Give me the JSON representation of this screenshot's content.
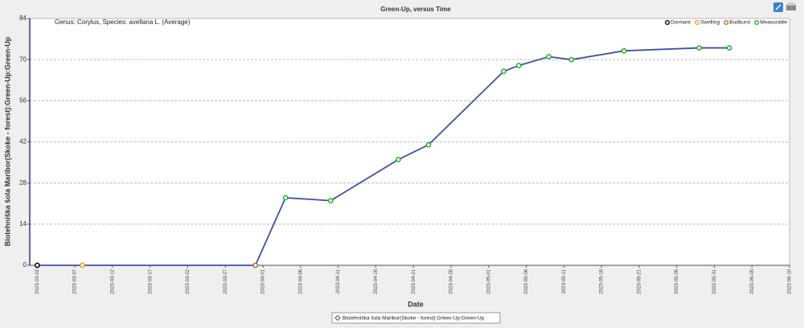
{
  "chart_data": {
    "type": "line",
    "title": "Green-Up, versus Time",
    "x_label": "Date",
    "y_label": "Biotehniška šola Maribor(Skoke - forest):Green-Up:Green-Up",
    "annotation": "Genus: Corylus, Species: avellana L. (Average)",
    "x": [
      "2023-03-02",
      "2023-03-08",
      "2023-03-31",
      "2023-04-04",
      "2023-04-10",
      "2023-04-19",
      "2023-04-23",
      "2023-05-03",
      "2023-05-05",
      "2023-05-09",
      "2023-05-12",
      "2023-05-19",
      "2023-05-29",
      "2023-06-02"
    ],
    "series": [
      {
        "name": "Biotehniška šola Maribor(Skoke - forest):Green-Up:Green-Up",
        "color": "#3f51a8",
        "values": [
          0,
          0,
          0,
          23,
          22,
          36,
          41,
          66,
          68,
          71,
          70,
          73,
          74,
          74
        ],
        "marker_colors": [
          "#000000",
          "#e8a020",
          "#b06a20",
          "#22b022",
          "#22b022",
          "#22b022",
          "#22b022",
          "#22b022",
          "#22b022",
          "#22b022",
          "#22b022",
          "#22b022",
          "#22b022",
          "#22b022"
        ]
      }
    ],
    "phase_legend": [
      {
        "name": "Dormant",
        "color": "#000000"
      },
      {
        "name": "Swelling",
        "color": "#e8a020"
      },
      {
        "name": "Budburst",
        "color": "#b06a20"
      },
      {
        "name": "Measurable",
        "color": "#22b022"
      }
    ],
    "xlim": [
      "2023-03-01",
      "2023-06-10"
    ],
    "xticks": [
      "2023-03-02",
      "2023-03-07",
      "2023-03-12",
      "2023-03-17",
      "2023-03-22",
      "2023-03-27",
      "2023-04-01",
      "2023-04-06",
      "2023-04-11",
      "2023-04-16",
      "2023-04-21",
      "2023-04-26",
      "2023-05-01",
      "2023-05-06",
      "2023-05-11",
      "2023-05-16",
      "2023-05-21",
      "2023-05-26",
      "2023-05-31",
      "2023-06-05",
      "2023-06-10"
    ],
    "ylim": [
      0,
      84
    ],
    "yticks": [
      0,
      14,
      28,
      42,
      56,
      70,
      84
    ],
    "grid": true
  }
}
